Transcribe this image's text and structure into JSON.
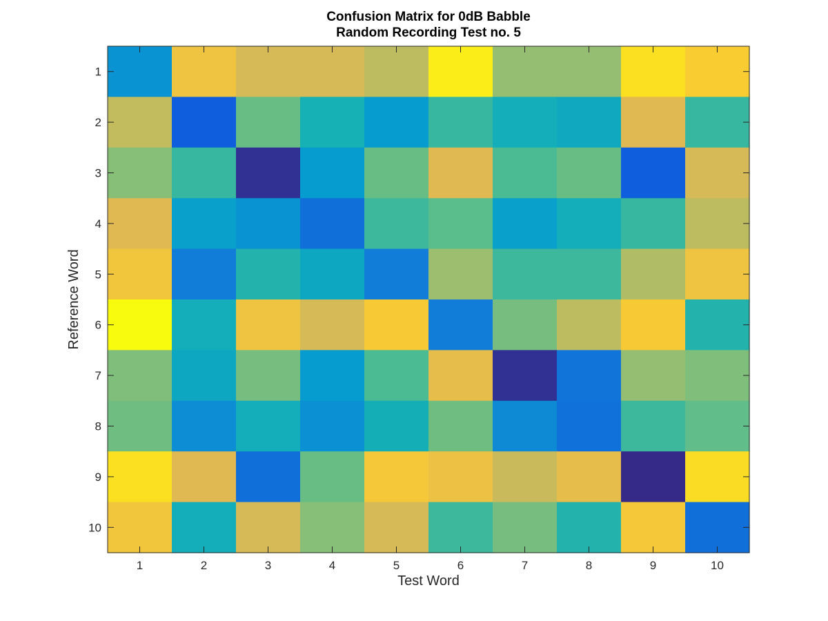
{
  "chart_data": {
    "type": "heatmap",
    "title": [
      "Confusion Matrix for 0dB Babble",
      "Random Recording Test no. 5"
    ],
    "xlabel": "Test Word",
    "ylabel": "Reference Word",
    "x_ticks": [
      "1",
      "2",
      "3",
      "4",
      "5",
      "6",
      "7",
      "8",
      "9",
      "10"
    ],
    "y_ticks": [
      "1",
      "2",
      "3",
      "4",
      "5",
      "6",
      "7",
      "8",
      "9",
      "10"
    ],
    "colormap": "parula",
    "clim": [
      0,
      1
    ],
    "grid": false,
    "colorbar": false,
    "values": [
      [
        0.35,
        0.85,
        0.78,
        0.78,
        0.74,
        0.97,
        0.68,
        0.68,
        0.94,
        0.89
      ],
      [
        0.75,
        0.15,
        0.62,
        0.5,
        0.38,
        0.55,
        0.48,
        0.45,
        0.8,
        0.55
      ],
      [
        0.66,
        0.55,
        0.02,
        0.38,
        0.62,
        0.8,
        0.58,
        0.62,
        0.15,
        0.78
      ],
      [
        0.8,
        0.4,
        0.35,
        0.22,
        0.56,
        0.6,
        0.4,
        0.48,
        0.55,
        0.74
      ],
      [
        0.86,
        0.28,
        0.52,
        0.44,
        0.28,
        0.69,
        0.56,
        0.56,
        0.72,
        0.85
      ],
      [
        1.0,
        0.48,
        0.85,
        0.78,
        0.88,
        0.28,
        0.64,
        0.74,
        0.88,
        0.52
      ],
      [
        0.65,
        0.44,
        0.64,
        0.38,
        0.58,
        0.82,
        0.02,
        0.24,
        0.68,
        0.65
      ],
      [
        0.63,
        0.33,
        0.48,
        0.34,
        0.49,
        0.63,
        0.32,
        0.23,
        0.56,
        0.61
      ],
      [
        0.94,
        0.8,
        0.22,
        0.62,
        0.87,
        0.84,
        0.76,
        0.82,
        0.0,
        0.93
      ],
      [
        0.86,
        0.48,
        0.78,
        0.66,
        0.78,
        0.56,
        0.64,
        0.52,
        0.87,
        0.22
      ]
    ]
  }
}
